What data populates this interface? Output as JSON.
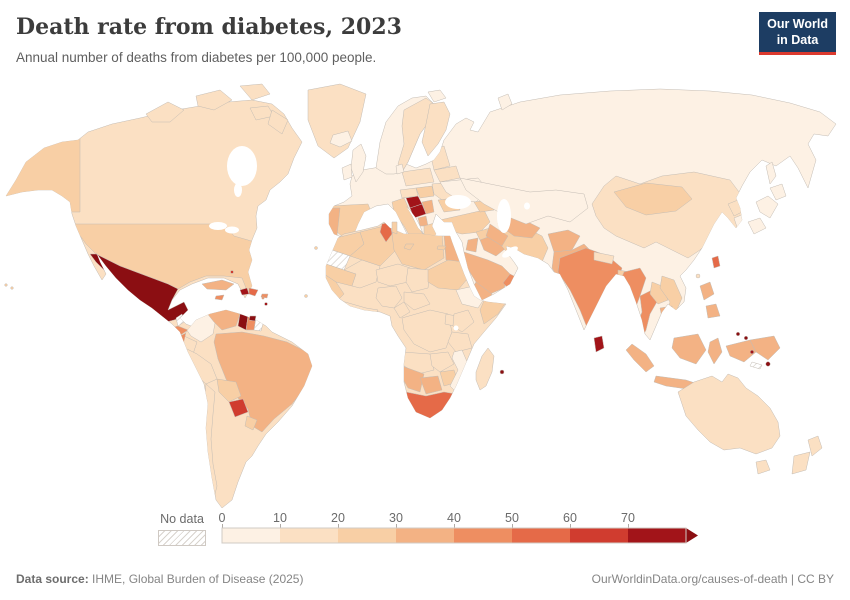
{
  "header": {
    "title": "Death rate from diabetes, 2023",
    "subtitle": "Annual number of deaths from diabetes per 100,000 people."
  },
  "logo": {
    "line1": "Our World",
    "line2": "in Data",
    "bg": "#1d3d63",
    "accent": "#dc3a2e"
  },
  "legend": {
    "no_data_label": "No data",
    "ticks": [
      "0",
      "10",
      "20",
      "30",
      "40",
      "50",
      "60",
      "70"
    ]
  },
  "footer": {
    "source_label": "Data source:",
    "source_text": " IHME, Global Burden of Disease (2025)",
    "right_text": "OurWorldinData.org/causes-of-death | CC BY"
  },
  "chart_data": {
    "type": "heatmap",
    "subtype": "choropleth-world-map",
    "title": "Death rate from diabetes, 2023",
    "unit": "deaths per 100,000 people",
    "scale": {
      "bins": [
        0,
        10,
        20,
        30,
        40,
        50,
        60,
        70
      ],
      "colors": [
        "#fdf1e4",
        "#fbe0c3",
        "#f8cfa5",
        "#f3b284",
        "#ee8e61",
        "#e56a48",
        "#d03c2f",
        "#a21419"
      ],
      "open_end_from": 78,
      "open_end_color": "#8b0e12",
      "no_data": "hatched"
    },
    "countries": {
      "United States": 24,
      "Canada": 13,
      "Greenland": 14,
      "Iceland": 8,
      "Mexico": 85,
      "Belize": null,
      "Guatemala": 73,
      "Honduras": 45,
      "Nicaragua": 42,
      "Costa Rica": 28,
      "Panama": 30,
      "Cuba": 32,
      "Jamaica": 48,
      "Haiti": 72,
      "Dominican Republic": 58,
      "Puerto Rico": 40,
      "Trinidad and Tobago": 80,
      "Bahamas": 60,
      "Barbados": 72,
      "Saint Lucia": 48,
      "Cape Verde": 28,
      "Colombia": 9,
      "Venezuela": 36,
      "Guyana": 82,
      "Suriname": 42,
      "French Guiana": null,
      "Brazil": 33,
      "Ecuador": 18,
      "Peru": 14,
      "Bolivia": 24,
      "Paraguay": 63,
      "Chile": 12,
      "Argentina": 16,
      "Uruguay": 24,
      "United Kingdom": 5,
      "Ireland": 7,
      "Norway": 6,
      "Sweden": 10,
      "Finland": 11,
      "Denmark": 9,
      "Germany": 8,
      "Netherlands": 6,
      "France": 4,
      "Spain": 22,
      "Portugal": 34,
      "Switzerland": 7,
      "Austria": 13,
      "Poland": 14,
      "Italy": 22,
      "Croatia": 72,
      "Bosnia and Herzegovina": 75,
      "Serbia": 33,
      "Albania": 36,
      "Greece": 22,
      "Hungary": 24,
      "Romania": 14,
      "Bulgaria": 26,
      "Lithuania": 14,
      "Belarus": 12,
      "Ukraine": 7,
      "Russia": 5,
      "Kazakhstan": 8,
      "Uzbekistan": 30,
      "Turkmenistan": 32,
      "Georgia": 28,
      "Turkey": 28,
      "Syria": 26,
      "Iraq": 34,
      "Iran": 24,
      "Afghanistan": 33,
      "Pakistan": 38,
      "Saudi Arabia": 34,
      "Yemen": 36,
      "Oman": 42,
      "Jordan": 32,
      "Egypt": 32,
      "Morocco": 24,
      "Western Sahara": null,
      "Algeria": 22,
      "Tunisia": 52,
      "Libya": 24,
      "Mauritania": 26,
      "Mali": 18,
      "Niger": 13,
      "Chad": 16,
      "Sudan": 26,
      "Ethiopia": 7,
      "Somalia": 21,
      "Senegal": 22,
      "Guinea": 16,
      "Nigeria": 14,
      "Cameroon": 17,
      "Central African Republic": 14,
      "Democratic Republic of Congo": 14,
      "Uganda": 12,
      "Kenya": 11,
      "Tanzania": 14,
      "Angola": 16,
      "Zambia": 12,
      "Zimbabwe": 24,
      "Mozambique": 8,
      "Namibia": 34,
      "Botswana": 38,
      "South Africa": 56,
      "Madagascar": 13,
      "Mauritius": 80,
      "India": 46,
      "Sri Lanka": 72,
      "Nepal": 14,
      "Bangladesh": 28,
      "China": 14,
      "Mongolia": 24,
      "North Korea": 14,
      "South Korea": 8,
      "Japan": 4,
      "Taiwan": 50,
      "Myanmar": 46,
      "Thailand": 46,
      "Laos": 22,
      "Vietnam": 24,
      "Cambodia": 34,
      "Malaysia": 38,
      "Indonesia": 36,
      "Philippines": 36,
      "Papua New Guinea": 38,
      "Solomon Islands": 80,
      "Vanuatu": 75,
      "Fiji": 85,
      "New Caledonia": null,
      "Australia": 11,
      "New Zealand": 12
    }
  }
}
